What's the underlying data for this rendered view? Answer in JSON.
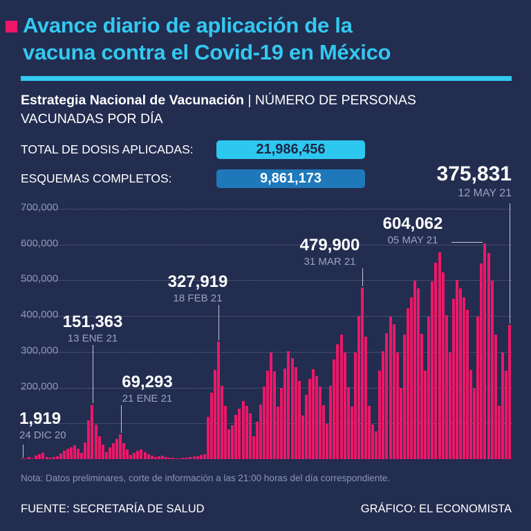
{
  "colors": {
    "background": "#232d50",
    "accent_cyan": "#33c9f0",
    "accent_pink": "#ee1768",
    "badge_blue": "#1e78ba",
    "muted_gray": "#9aa3bd"
  },
  "header": {
    "title_lines": [
      "Avance diario de aplicación de la",
      "vacuna contra el Covid-19 en México"
    ],
    "subtitle_bold": "Estrategia Nacional de Vacunación",
    "subtitle_sep": "|",
    "subtitle_rest": "NÚMERO DE PERSONAS VACUNADAS POR DÍA"
  },
  "stats": [
    {
      "label": "TOTAL DE DOSIS APLICADAS:",
      "value": "21,986,456"
    },
    {
      "label": "ESQUEMAS COMPLETOS:",
      "value": "9,861,173"
    }
  ],
  "headline": {
    "value": "375,831",
    "date": "12 MAY 21"
  },
  "chart_data": {
    "type": "bar",
    "title": "Número de personas vacunadas por día",
    "x_start": "24 DIC 20",
    "x_end": "12 MAY 21",
    "ylim": [
      0,
      700000
    ],
    "y_ticks": [
      "700,000",
      "600,000",
      "500,000",
      "400,000",
      "300,000",
      "200,000"
    ],
    "grid": "dotted",
    "bar_color": "#ee1768",
    "values": [
      1919,
      2924,
      6217,
      2824,
      9579,
      14439,
      17683,
      6219,
      4198,
      5400,
      6800,
      16200,
      23500,
      28900,
      33400,
      39200,
      28700,
      17900,
      46300,
      107800,
      151363,
      97400,
      64800,
      41200,
      19600,
      33800,
      45100,
      55800,
      69293,
      43700,
      26900,
      12400,
      17800,
      23900,
      26400,
      19800,
      13600,
      8900,
      5700,
      7200,
      8900,
      6100,
      4800,
      3900,
      2700,
      2300,
      3400,
      4600,
      5500,
      6800,
      8400,
      10900,
      13200,
      118600,
      186400,
      248700,
      327919,
      204500,
      148200,
      83600,
      95400,
      123800,
      141600,
      162300,
      149800,
      127400,
      64800,
      104900,
      152600,
      203800,
      247100,
      297400,
      244800,
      146200,
      198400,
      252900,
      301600,
      282300,
      257800,
      219400,
      121700,
      178900,
      224600,
      251300,
      232800,
      203600,
      151200,
      98400,
      204700,
      278300,
      321600,
      348900,
      297200,
      201800,
      146300,
      298600,
      401200,
      479900,
      342700,
      148600,
      96800,
      77400,
      246900,
      301400,
      352800,
      398600,
      376200,
      297400,
      198600,
      348200,
      421700,
      452300,
      498600,
      476900,
      349800,
      247600,
      398400,
      497200,
      548600,
      577300,
      521400,
      401800,
      297600,
      448900,
      501200,
      478600,
      452300,
      417800,
      248600,
      197400,
      398200,
      547600,
      604062,
      576800,
      498400,
      347200,
      148900,
      297400,
      246800,
      375831
    ],
    "annotations": [
      {
        "value": "1,919",
        "date": "24 DIC 20",
        "day_index": 0
      },
      {
        "value": "151,363",
        "date": "13 ENE 21",
        "day_index": 20
      },
      {
        "value": "69,293",
        "date": "21 ENE 21",
        "day_index": 28
      },
      {
        "value": "327,919",
        "date": "18 FEB 21",
        "day_index": 56
      },
      {
        "value": "479,900",
        "date": "31 MAR 21",
        "day_index": 97
      },
      {
        "value": "604,062",
        "date": "05 MAY 21",
        "day_index": 132
      },
      {
        "value": "375,831",
        "date": "12 MAY 21",
        "day_index": 139
      }
    ]
  },
  "footer": {
    "note": "Nota: Datos preliminares, corte de información a las 21:00 horas del día correspondiente.",
    "source": "FUENTE: SECRETARÍA DE SALUD",
    "credit": "GRÁFICO: EL ECONOMISTA"
  }
}
